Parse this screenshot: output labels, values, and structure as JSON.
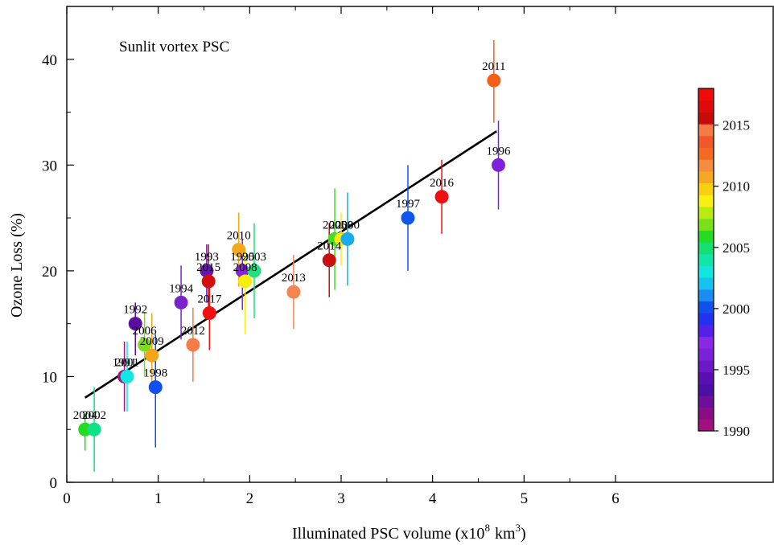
{
  "chart_data": {
    "type": "scatter",
    "title": "",
    "annotation": "Sunlit vortex PSC",
    "xlabel": "Illuminated PSC volume (x10",
    "xlabel_exp1": "8",
    "xlabel_unit": "km",
    "xlabel_exp2": "3",
    "xlabel_close": ")",
    "ylabel": "Ozone Loss (%)",
    "xlim": [
      0,
      6
    ],
    "ylim": [
      0,
      45
    ],
    "x_ticks": [
      0,
      1,
      2,
      3,
      4,
      5,
      6
    ],
    "y_ticks": [
      0,
      10,
      20,
      30,
      40
    ],
    "grid": false,
    "points": [
      {
        "label": "2004",
        "year": 2004,
        "x": 0.2,
        "y": 5.0,
        "err_lo": 3.0,
        "err_hi": 6.5,
        "color": "#22dd22"
      },
      {
        "label": "2002",
        "year": 2002,
        "x": 0.3,
        "y": 5.0,
        "err_lo": 1.0,
        "err_hi": 9.0,
        "color": "#11e088"
      },
      {
        "label": "1991",
        "year": 1991,
        "x": 0.63,
        "y": 10.0,
        "err_lo": 6.7,
        "err_hi": 13.3,
        "color": "#a0107f"
      },
      {
        "label": "2001",
        "year": 2001,
        "x": 0.66,
        "y": 10.0,
        "err_lo": 6.7,
        "err_hi": 13.3,
        "color": "#14e6e6"
      },
      {
        "label": "1992",
        "year": 1992,
        "x": 0.75,
        "y": 15.0,
        "err_lo": 12.0,
        "err_hi": 17.0,
        "color": "#5a0fa0"
      },
      {
        "label": "2006",
        "year": 2006,
        "x": 0.85,
        "y": 13.0,
        "err_lo": 10.0,
        "err_hi": 16.0,
        "color": "#77e01a"
      },
      {
        "label": "2009",
        "year": 2009,
        "x": 0.93,
        "y": 12.0,
        "err_lo": 8.5,
        "err_hi": 16.0,
        "color": "#f6a41a"
      },
      {
        "label": "1998",
        "year": 1998,
        "x": 0.97,
        "y": 9.0,
        "err_lo": 3.3,
        "err_hi": 14.0,
        "color": "#1050ee"
      },
      {
        "label": "1994",
        "year": 1994,
        "x": 1.25,
        "y": 17.0,
        "err_lo": 13.5,
        "err_hi": 20.5,
        "color": "#7a22cc"
      },
      {
        "label": "2012",
        "year": 2012,
        "x": 1.38,
        "y": 13.0,
        "err_lo": 9.5,
        "err_hi": 16.5,
        "color": "#f57c48"
      },
      {
        "label": "1993",
        "year": 1993,
        "x": 1.53,
        "y": 20.0,
        "err_lo": 17.0,
        "err_hi": 22.5,
        "color": "#6616b0"
      },
      {
        "label": "2015",
        "year": 2015,
        "x": 1.55,
        "y": 19.0,
        "err_lo": 15.5,
        "err_hi": 22.5,
        "color": "#d40d0d"
      },
      {
        "label": "2017",
        "year": 2017,
        "x": 1.56,
        "y": 16.0,
        "err_lo": 12.5,
        "err_hi": 19.5,
        "color": "#f01010"
      },
      {
        "label": "2010",
        "year": 2010,
        "x": 1.88,
        "y": 22.0,
        "err_lo": 18.5,
        "err_hi": 25.5,
        "color": "#f4a81a"
      },
      {
        "label": "1995",
        "year": 1995,
        "x": 1.92,
        "y": 20.0,
        "err_lo": 16.3,
        "err_hi": 23.0,
        "color": "#8822dd"
      },
      {
        "label": "2008",
        "year": 2008,
        "x": 1.95,
        "y": 19.0,
        "err_lo": 14.0,
        "err_hi": 22.0,
        "color": "#f7ee10"
      },
      {
        "label": "2003",
        "year": 2003,
        "x": 2.05,
        "y": 20.0,
        "err_lo": 15.5,
        "err_hi": 24.5,
        "color": "#1ee27a"
      },
      {
        "label": "2013",
        "year": 2013,
        "x": 2.48,
        "y": 18.0,
        "err_lo": 14.5,
        "err_hi": 21.5,
        "color": "#f58450"
      },
      {
        "label": "2014",
        "year": 2014,
        "x": 2.87,
        "y": 21.0,
        "err_lo": 17.5,
        "err_hi": 24.5,
        "color": "#c81010"
      },
      {
        "label": "2005",
        "year": 2005,
        "x": 2.93,
        "y": 23.0,
        "err_lo": 18.2,
        "err_hi": 27.8,
        "color": "#44dd22"
      },
      {
        "label": "2008",
        "year": 2008,
        "x": 3.0,
        "y": 23.0,
        "err_lo": 20.5,
        "err_hi": 25.5,
        "color": "#f6ec10"
      },
      {
        "label": "2000",
        "year": 2000,
        "x": 3.07,
        "y": 23.0,
        "err_lo": 18.6,
        "err_hi": 27.4,
        "color": "#1aaaf0"
      },
      {
        "label": "1997",
        "year": 1997,
        "x": 3.73,
        "y": 25.0,
        "err_lo": 20.0,
        "err_hi": 30.0,
        "color": "#1055ee"
      },
      {
        "label": "2016",
        "year": 2016,
        "x": 4.1,
        "y": 27.0,
        "err_lo": 23.5,
        "err_hi": 30.5,
        "color": "#ee1010"
      },
      {
        "label": "2011",
        "year": 2011,
        "x": 4.67,
        "y": 38.0,
        "err_lo": 34.0,
        "err_hi": 41.8,
        "color": "#f4601a"
      },
      {
        "label": "1996",
        "year": 1996,
        "x": 4.72,
        "y": 30.0,
        "err_lo": 25.8,
        "err_hi": 34.2,
        "color": "#8020dd"
      }
    ],
    "fit_line": {
      "x": [
        0.2,
        4.7
      ],
      "y": [
        8.0,
        33.2
      ],
      "color": "#000000"
    },
    "colorbar": {
      "min": 1990,
      "max": 2018,
      "ticks": [
        "1990",
        "1995",
        "2000",
        "2005",
        "2010",
        "2015"
      ],
      "tick_values": [
        1990,
        1995,
        2000,
        2005,
        2010,
        2015
      ],
      "colors": [
        "#a0107f",
        "#8c0c86",
        "#6e0e9a",
        "#4c0fa6",
        "#5a10b0",
        "#6a18c8",
        "#7a22d8",
        "#8a28e6",
        "#5520e8",
        "#2033f0",
        "#1050ee",
        "#1a8cf2",
        "#14c4f0",
        "#10e6e0",
        "#10e6a8",
        "#12e070",
        "#22dd22",
        "#7ae01a",
        "#b8ec10",
        "#f8f010",
        "#f8d010",
        "#f6a820",
        "#f58c40",
        "#f46a20",
        "#f0582a",
        "#f57a44",
        "#c80a0a",
        "#e00a0a",
        "#f00a0a"
      ]
    }
  }
}
